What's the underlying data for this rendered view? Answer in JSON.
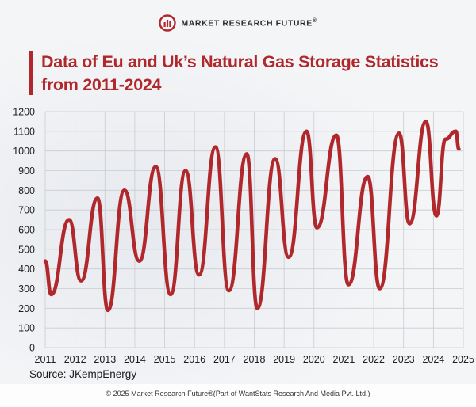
{
  "brand": {
    "name": "MARKET RESEARCH FUTURE",
    "reg": "®",
    "accent_color": "#b0282b"
  },
  "chart_data": {
    "type": "line",
    "title": "Data of Eu and Uk’s Natural Gas Storage Statistics from 2011-2024",
    "xlabel": "",
    "ylabel": "",
    "xlim": [
      2011,
      2025
    ],
    "ylim": [
      0,
      1200
    ],
    "y_ticks": [
      0,
      100,
      200,
      300,
      400,
      500,
      600,
      700,
      800,
      900,
      1000,
      1100,
      1200
    ],
    "x_ticks": [
      "2011",
      "2012",
      "2013",
      "2014",
      "2015",
      "2016",
      "2017",
      "2018",
      "2019",
      "2020",
      "2021",
      "2022",
      "2023",
      "2024",
      "2025"
    ],
    "grid": true,
    "line_color": "#b0282b",
    "series": [
      {
        "name": "Natural Gas Storage",
        "x": [
          2011.0,
          2011.2,
          2011.8,
          2012.2,
          2012.75,
          2013.1,
          2013.65,
          2014.15,
          2014.7,
          2015.2,
          2015.7,
          2016.15,
          2016.7,
          2017.15,
          2017.75,
          2018.1,
          2018.7,
          2019.15,
          2019.75,
          2020.1,
          2020.75,
          2021.15,
          2021.8,
          2022.2,
          2022.85,
          2023.2,
          2023.75,
          2024.1,
          2024.4,
          2024.75,
          2024.85
        ],
        "y": [
          440,
          270,
          650,
          340,
          760,
          190,
          800,
          440,
          920,
          270,
          900,
          370,
          1020,
          290,
          985,
          200,
          960,
          460,
          1100,
          610,
          1080,
          320,
          870,
          300,
          1090,
          630,
          1150,
          670,
          1060,
          1100,
          1010
        ]
      }
    ]
  },
  "source": "Source: JKempEnergy",
  "copyright": "© 2025 Market Research Future®(Part of WantStats Research And Media Pvt. Ltd.)"
}
